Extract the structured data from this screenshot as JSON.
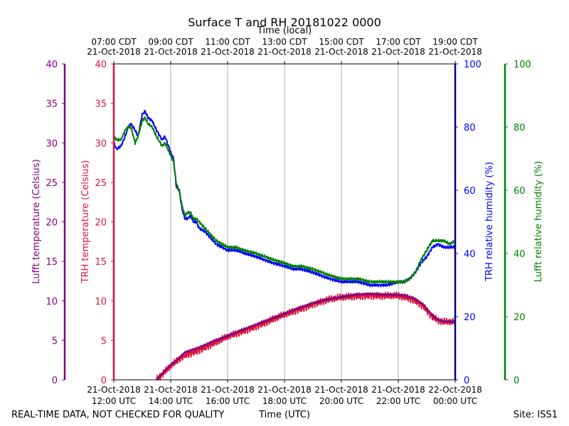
{
  "chart_data": {
    "type": "line",
    "title": "Surface T and RH 20181022 0000",
    "xlabel_bottom": "Time (UTC)",
    "xlabel_top": "Time (local)",
    "x_range_hours_utc": [
      12,
      24
    ],
    "x_ticks_bottom": [
      {
        "hour": 12,
        "line1": "21-Oct-2018",
        "line2": "12:00 UTC"
      },
      {
        "hour": 14,
        "line1": "21-Oct-2018",
        "line2": "14:00 UTC"
      },
      {
        "hour": 16,
        "line1": "21-Oct-2018",
        "line2": "16:00 UTC"
      },
      {
        "hour": 18,
        "line1": "21-Oct-2018",
        "line2": "18:00 UTC"
      },
      {
        "hour": 20,
        "line1": "21-Oct-2018",
        "line2": "20:00 UTC"
      },
      {
        "hour": 22,
        "line1": "21-Oct-2018",
        "line2": "22:00 UTC"
      },
      {
        "hour": 24,
        "line1": "22-Oct-2018",
        "line2": "00:00 UTC"
      }
    ],
    "x_ticks_top": [
      {
        "hour": 12,
        "line1": "07:00 CDT",
        "line2": "21-Oct-2018"
      },
      {
        "hour": 14,
        "line1": "09:00 CDT",
        "line2": "21-Oct-2018"
      },
      {
        "hour": 16,
        "line1": "11:00 CDT",
        "line2": "21-Oct-2018"
      },
      {
        "hour": 18,
        "line1": "13:00 CDT",
        "line2": "21-Oct-2018"
      },
      {
        "hour": 20,
        "line1": "15:00 CDT",
        "line2": "21-Oct-2018"
      },
      {
        "hour": 22,
        "line1": "17:00 CDT",
        "line2": "21-Oct-2018"
      },
      {
        "hour": 24,
        "line1": "19:00 CDT",
        "line2": "21-Oct-2018"
      }
    ],
    "axes": {
      "lufft_temp": {
        "label": "Lufft temperature (Celsius)",
        "range": [
          0,
          40
        ],
        "ticks": [
          0,
          5,
          10,
          15,
          20,
          25,
          30,
          35,
          40
        ],
        "color": "#800080"
      },
      "trh_temp": {
        "label": "TRH temperature (Celsius)",
        "range": [
          0,
          40
        ],
        "ticks": [
          0,
          5,
          10,
          15,
          20,
          25,
          30,
          35,
          40
        ],
        "color": "#dc143c"
      },
      "trh_rh": {
        "label": "TRH relative humidity (%)",
        "range": [
          0,
          100
        ],
        "ticks": [
          0,
          20,
          40,
          60,
          80,
          100
        ],
        "color": "#0000ff"
      },
      "lufft_rh": {
        "label": "Lufft relative humidity (%)",
        "range": [
          0,
          100
        ],
        "ticks": [
          0,
          20,
          40,
          60,
          80,
          100
        ],
        "color": "#008000"
      }
    },
    "series": [
      {
        "name": "TRH relative humidity",
        "axis": "trh_rh",
        "color": "#0000ff",
        "x": [
          12.0,
          12.1,
          12.25,
          12.4,
          12.5,
          12.6,
          12.75,
          12.85,
          13.0,
          13.1,
          13.2,
          13.35,
          13.5,
          13.7,
          13.8,
          14.0,
          14.1,
          14.2,
          14.3,
          14.4,
          14.5,
          14.6,
          14.7,
          14.8,
          14.9,
          15.0,
          15.2,
          15.4,
          15.6,
          15.8,
          16.0,
          16.3,
          16.6,
          17.0,
          17.3,
          17.6,
          18.0,
          18.3,
          18.6,
          19.0,
          19.3,
          19.6,
          20.0,
          20.3,
          20.6,
          21.0,
          21.3,
          21.6,
          22.0,
          22.2,
          22.4,
          22.6,
          22.8,
          23.0,
          23.2,
          23.4,
          23.6,
          23.8,
          24.0
        ],
        "y": [
          75,
          73,
          74,
          77,
          80,
          81,
          79,
          77,
          84,
          85,
          83,
          82,
          79,
          76,
          77,
          72,
          70,
          61,
          60,
          54,
          51,
          51,
          52,
          50,
          50,
          48,
          47,
          45,
          43,
          42,
          41,
          41,
          40,
          39,
          38,
          37,
          36,
          35,
          35,
          34,
          33,
          32,
          31,
          31,
          31,
          30,
          30,
          30,
          31,
          31,
          32,
          34,
          37,
          39,
          42,
          43,
          42,
          42,
          42
        ]
      },
      {
        "name": "Lufft relative humidity",
        "axis": "lufft_rh",
        "color": "#008000",
        "x": [
          12.0,
          12.1,
          12.25,
          12.4,
          12.5,
          12.6,
          12.75,
          12.85,
          13.0,
          13.1,
          13.2,
          13.35,
          13.5,
          13.7,
          13.8,
          14.0,
          14.1,
          14.2,
          14.3,
          14.4,
          14.5,
          14.6,
          14.7,
          14.8,
          14.9,
          15.0,
          15.2,
          15.4,
          15.6,
          15.8,
          16.0,
          16.3,
          16.6,
          17.0,
          17.3,
          17.6,
          18.0,
          18.3,
          18.6,
          19.0,
          19.3,
          19.6,
          20.0,
          20.3,
          20.6,
          21.0,
          21.3,
          21.6,
          22.0,
          22.2,
          22.4,
          22.6,
          22.8,
          23.0,
          23.2,
          23.4,
          23.6,
          23.8,
          24.0
        ],
        "y": [
          77,
          76,
          76,
          79,
          80,
          80,
          75,
          77,
          82,
          83,
          81,
          80,
          77,
          74,
          75,
          71,
          69,
          62,
          60,
          55,
          52,
          53,
          53,
          51,
          51,
          50,
          48,
          46,
          44,
          43,
          42,
          42,
          41,
          40,
          39,
          38,
          37,
          36,
          36,
          35,
          34,
          33,
          32,
          32,
          32,
          31,
          31,
          31,
          31,
          31,
          32,
          34,
          38,
          41,
          44,
          44,
          44,
          43,
          44
        ]
      },
      {
        "name": "TRH temperature",
        "axis": "trh_temp",
        "color": "#dc143c",
        "x": [
          13.5,
          13.8,
          14.0,
          14.3,
          14.5,
          15.0,
          15.5,
          16.0,
          16.5,
          17.0,
          17.5,
          18.0,
          18.5,
          19.0,
          19.5,
          20.0,
          20.5,
          21.0,
          21.5,
          22.0,
          22.3,
          22.5,
          22.7,
          22.9,
          23.0,
          23.2,
          23.4,
          23.6,
          23.8,
          24.0
        ],
        "y": [
          0,
          1.0,
          1.7,
          2.6,
          3.1,
          3.8,
          4.6,
          5.4,
          6.1,
          6.8,
          7.5,
          8.2,
          8.9,
          9.6,
          10.1,
          10.4,
          10.6,
          10.7,
          10.6,
          10.6,
          10.4,
          10.2,
          9.8,
          9.3,
          8.8,
          8.0,
          7.5,
          7.3,
          7.3,
          7.3
        ]
      },
      {
        "name": "Lufft temperature",
        "axis": "lufft_temp",
        "color": "#800080",
        "x": [
          13.5,
          13.8,
          14.0,
          14.3,
          14.5,
          15.0,
          15.5,
          16.0,
          16.5,
          17.0,
          17.5,
          18.0,
          18.5,
          19.0,
          19.5,
          20.0,
          20.5,
          21.0,
          21.5,
          22.0,
          22.3,
          22.5,
          22.7,
          22.9,
          23.0,
          23.2,
          23.4,
          23.6,
          23.8,
          24.0
        ],
        "y": [
          0,
          1.2,
          1.9,
          2.8,
          3.5,
          4.1,
          4.9,
          5.6,
          6.3,
          7.0,
          7.7,
          8.4,
          9.1,
          9.7,
          10.2,
          10.5,
          10.8,
          10.9,
          10.8,
          10.8,
          10.6,
          10.4,
          10.0,
          9.5,
          9.0,
          8.2,
          7.6,
          7.4,
          7.4,
          7.4
        ]
      }
    ]
  },
  "footer": {
    "left": "REAL-TIME DATA, NOT CHECKED FOR QUALITY",
    "center": "Time (UTC)",
    "right": "Site: ISS1"
  }
}
